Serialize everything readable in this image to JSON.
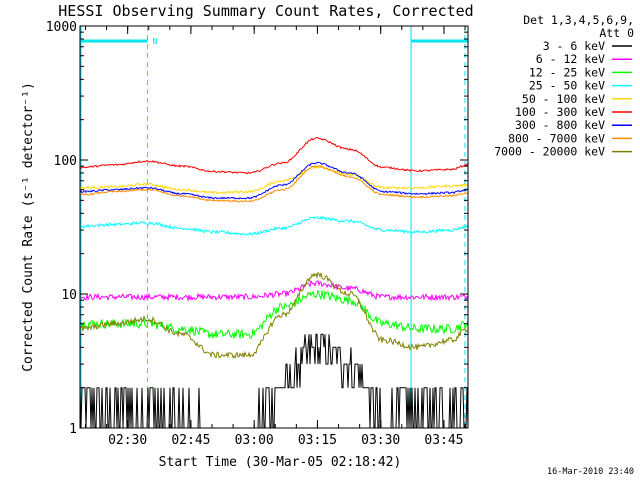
{
  "chart_data": {
    "type": "line",
    "title": "HESSI Observing Summary Count Rates, Corrected",
    "ylabel": "Corrected Count Rate (s⁻¹ detector⁻¹)",
    "xlabel": "Start Time (30-Mar-05 02:18:42)",
    "yscale": "log",
    "ylim": [
      1,
      1000
    ],
    "xlim_minutes": [
      0,
      92
    ],
    "y_ticks": [
      {
        "value": 1,
        "label": "1"
      },
      {
        "value": 10,
        "label": "10"
      },
      {
        "value": 100,
        "label": "100"
      },
      {
        "value": 1000,
        "label": "1000"
      }
    ],
    "x_ticks": [
      {
        "value": 11.3,
        "label": "02:30"
      },
      {
        "value": 26.3,
        "label": "02:45"
      },
      {
        "value": 41.3,
        "label": "03:00"
      },
      {
        "value": 56.3,
        "label": "03:15"
      },
      {
        "value": 71.3,
        "label": "03:30"
      },
      {
        "value": 86.3,
        "label": "03:45"
      }
    ],
    "legend": {
      "placement": "right",
      "header": [
        "Det 1,3,4,5,6,9,",
        "Att 0"
      ]
    },
    "annotations": [
      {
        "text": "N",
        "x": 16
      }
    ],
    "night_intervals_minutes": [
      [
        0,
        16
      ],
      [
        78.5,
        92
      ]
    ],
    "saa_boundaries_minutes": [
      16,
      78.5,
      92
    ],
    "x_minutes": [
      0,
      8,
      16,
      24,
      32,
      40,
      48,
      56,
      64,
      72,
      80,
      88,
      92
    ],
    "series": [
      {
        "name": "3 - 6 keV",
        "color": "#000000",
        "values": [
          1.5,
          1.5,
          1.5,
          1.2,
          1.0,
          1.0,
          2.0,
          4.0,
          3.0,
          1.2,
          1.5,
          1.5,
          1.5
        ]
      },
      {
        "name": "6 - 12 keV",
        "color": "#ff00ff",
        "values": [
          9.5,
          9.5,
          9.5,
          9.5,
          9.5,
          9.5,
          10,
          12,
          11,
          9.5,
          9.5,
          9.5,
          9.5
        ]
      },
      {
        "name": "12 - 25 keV",
        "color": "#00ff00",
        "values": [
          6.0,
          6.0,
          6.0,
          5.5,
          5.0,
          5.0,
          8.0,
          10.0,
          9.0,
          6.0,
          5.5,
          5.5,
          6.0
        ]
      },
      {
        "name": "25 - 50 keV",
        "color": "#00ffff",
        "values": [
          32,
          33,
          34,
          31,
          29,
          28,
          31,
          37,
          35,
          30,
          29,
          30,
          32
        ]
      },
      {
        "name": "50 - 100 keV",
        "color": "#ffd700",
        "values": [
          62,
          63,
          66,
          60,
          57,
          58,
          70,
          88,
          78,
          62,
          62,
          64,
          65
        ]
      },
      {
        "name": "100 - 300 keV",
        "color": "#ff0000",
        "values": [
          88,
          92,
          98,
          90,
          82,
          80,
          95,
          145,
          120,
          88,
          83,
          85,
          92
        ]
      },
      {
        "name": "300 - 800 keV",
        "color": "#0000ff",
        "values": [
          58,
          60,
          62,
          56,
          52,
          52,
          65,
          95,
          80,
          58,
          56,
          57,
          60
        ]
      },
      {
        "name": "800 - 7000 keV",
        "color": "#ff8c00",
        "values": [
          55,
          58,
          60,
          54,
          50,
          49,
          60,
          90,
          75,
          55,
          53,
          54,
          57
        ]
      },
      {
        "name": "7000 - 20000 keV",
        "color": "#808000",
        "values": [
          5.5,
          6.0,
          6.5,
          5.0,
          3.5,
          3.5,
          7.0,
          14.0,
          10.0,
          4.5,
          4.0,
          4.5,
          5.5
        ]
      }
    ]
  },
  "timestamp": "16-Mar-2010 23:40"
}
